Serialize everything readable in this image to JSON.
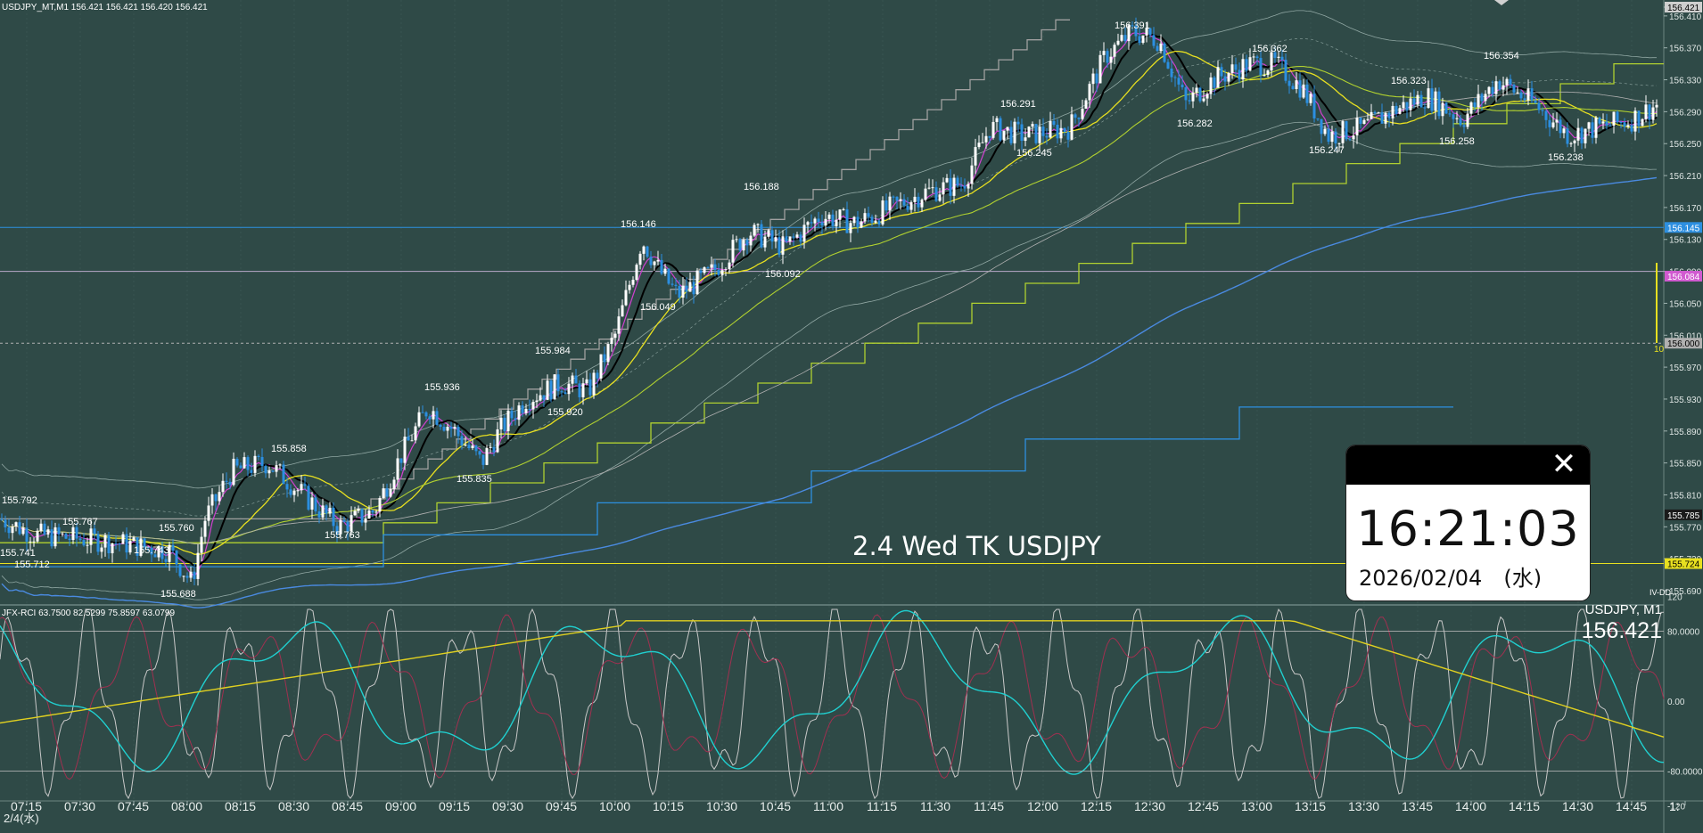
{
  "header": {
    "symbol_info": "USDJPY_MT,M1  156.421 156.421 156.420 156.421",
    "indicator_info": "JFX-RCI 63.7500 82.5299 75.8597 63.0799",
    "date_label": "2/4(水)"
  },
  "overlay_text": "2.4 Wed TK USDJPY",
  "clock_widget": {
    "time": "16:21:03",
    "date": "2026/02/04　(水)",
    "close_icon": "close-icon"
  },
  "subpane": {
    "title": "USDJPY, M1",
    "price": "156.421"
  },
  "price_axis": {
    "ticks": [
      "156.421",
      "156.410",
      "156.370",
      "156.330",
      "156.290",
      "156.250",
      "156.210",
      "156.170",
      "156.130",
      "156.090",
      "156.050",
      "156.010",
      "155.970",
      "155.930",
      "155.890",
      "155.850",
      "155.810",
      "155.770",
      "155.730",
      "155.690"
    ],
    "tags": [
      {
        "label": "156.421",
        "color": "#cfcfcf",
        "value": 156.421
      },
      {
        "label": "156.145",
        "color": "#2d8fe0",
        "value": 156.145
      },
      {
        "label": "156.084",
        "color": "#d05ad0",
        "value": 156.084
      },
      {
        "label": "156.000",
        "color": "#b0b0b0",
        "value": 156.0
      },
      {
        "label": "155.785",
        "color": "#1a1a1a",
        "value": 155.785
      },
      {
        "label": "155.724",
        "color": "#e8e020",
        "value": 155.724
      }
    ],
    "marker_10": "10"
  },
  "rci_axis": {
    "ticks": [
      "120",
      "80.0000",
      "0.00",
      "-80.0000",
      "-120"
    ]
  },
  "time_axis": {
    "labels": [
      "07:15",
      "07:30",
      "07:45",
      "08:00",
      "08:15",
      "08:30",
      "08:45",
      "09:00",
      "09:15",
      "09:30",
      "09:45",
      "10:00",
      "10:15",
      "10:30",
      "10:45",
      "11:00",
      "11:15",
      "11:30",
      "11:45",
      "12:00",
      "12:15",
      "12:30",
      "12:45",
      "13:00",
      "13:15",
      "13:30",
      "13:45",
      "14:00",
      "14:15",
      "14:30",
      "14:45",
      "1:"
    ]
  },
  "price_labels": [
    "155.792",
    "155.767",
    "155.741",
    "155.712",
    "155.760",
    "155.743",
    "155.688",
    "155.858",
    "155.763",
    "155.936",
    "155.835",
    "155.984",
    "155.920",
    "156.146",
    "156.049",
    "156.188",
    "156.092",
    "156.291",
    "156.245",
    "156.391",
    "156.282",
    "156.362",
    "156.247",
    "156.323",
    "156.258",
    "156.354",
    "156.238"
  ],
  "colors": {
    "background": "#2f4a47",
    "grid": "#3f5c58",
    "up_candle": "#ffffff",
    "down_candle": "#2b8fe0",
    "ma_black": "#000000",
    "ma_magenta": "#d040d0",
    "ma_yellow": "#e8e020",
    "ma_green": "#b0d030",
    "ma_blue": "#4a8ae0",
    "rci_white": "#c8c8c8",
    "rci_cyan": "#20d0d0",
    "rci_yellow": "#e0d020",
    "rci_red": "#a03050"
  }
}
